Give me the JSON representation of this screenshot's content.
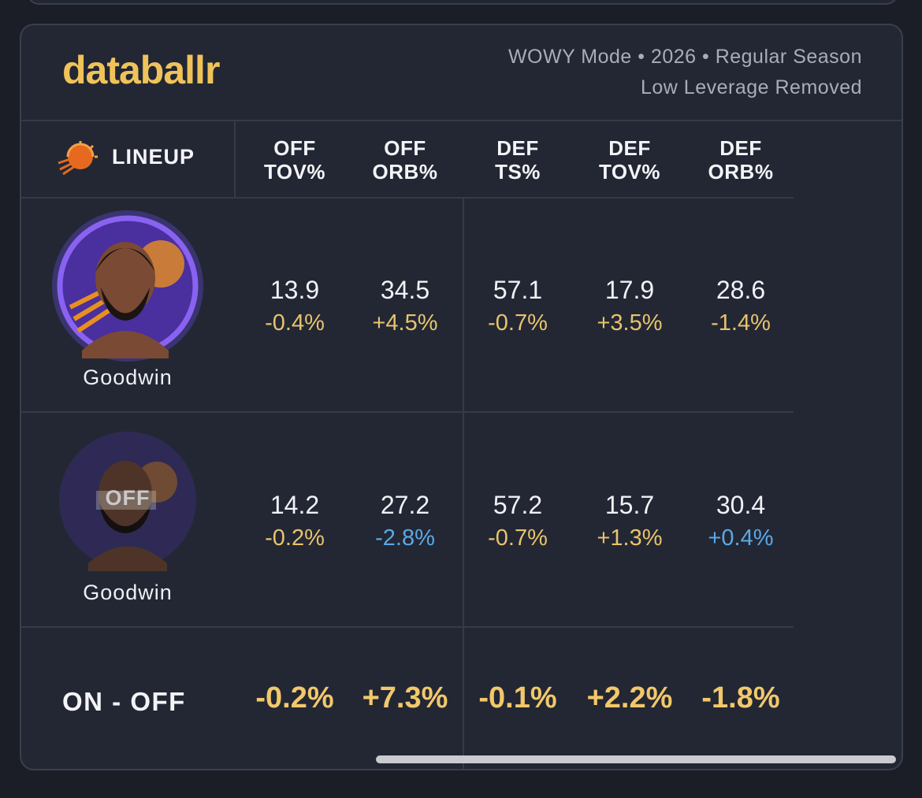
{
  "top_bar": {
    "logo": "databallr",
    "meta": [
      "WOWY Mode • 2026 • Regular Season",
      "Low Leverage Removed"
    ]
  },
  "table": {
    "lineup_header": "LINEUP",
    "columns": [
      [
        "OFF",
        "TOV%"
      ],
      [
        "OFF",
        "ORB%"
      ],
      [
        "DEF",
        "TS%"
      ],
      [
        "DEF",
        "TOV%"
      ],
      [
        "DEF",
        "ORB%"
      ]
    ],
    "rows": [
      {
        "player": "Goodwin",
        "values": [
          13.9,
          34.5,
          57.1,
          17.9,
          28.6
        ],
        "deltas": [
          "-0.4%",
          "+4.5%",
          "-0.7%",
          "+3.5%",
          "-1.4%"
        ],
        "delta_colors": [
          "#e8c36c",
          "#e8c36c",
          "#e8c36c",
          "#e8c36c",
          "#e8c36c"
        ]
      },
      {
        "player": "Goodwin",
        "status": "OFF",
        "values": [
          14.2,
          27.2,
          57.2,
          15.7,
          30.4
        ],
        "deltas": [
          "-0.2%",
          "-2.8%",
          "-0.7%",
          "+1.3%",
          "+0.4%"
        ],
        "delta_colors": [
          "#e8c36c",
          "#5aa9e6",
          "#e8c36c",
          "#e8c36c",
          "#5aa9e6"
        ]
      }
    ],
    "summary": {
      "label": "ON - OFF",
      "values": [
        "-0.2%",
        "+7.3%",
        "-0.1%",
        "+2.2%",
        "-1.8%"
      ]
    }
  }
}
